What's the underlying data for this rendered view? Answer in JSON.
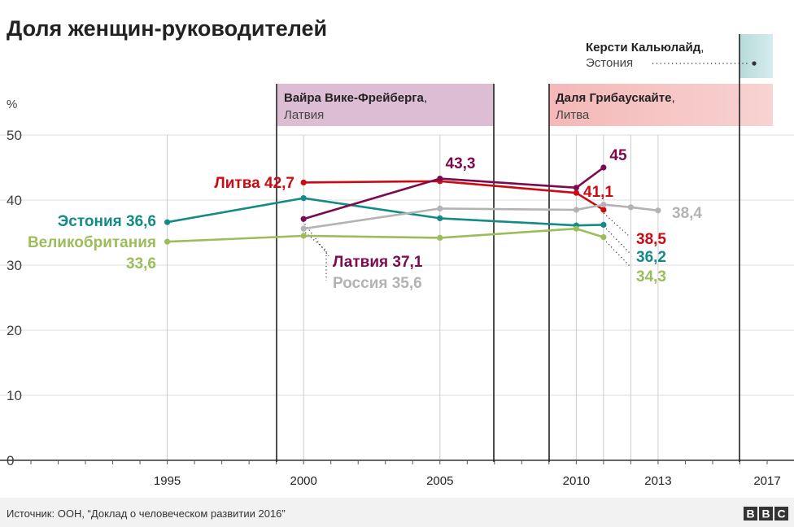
{
  "chart_data": {
    "type": "line",
    "title": "Доля женщин-руководителей",
    "unit_label": "%",
    "ylim": [
      0,
      50
    ],
    "y_ticks": [
      "0",
      "10",
      "20",
      "30",
      "40",
      "50"
    ],
    "x_range": [
      1990,
      2017
    ],
    "x_ticks": [
      {
        "value": 1995,
        "label": "1995"
      },
      {
        "value": 2000,
        "label": "2000"
      },
      {
        "value": 2005,
        "label": "2005"
      },
      {
        "value": 2010,
        "label": "2010"
      },
      {
        "value": 2013,
        "label": "2013"
      },
      {
        "value": 2017,
        "label": "2017"
      }
    ],
    "grid": true,
    "series": [
      {
        "name": "Эстония",
        "color": "#138b86",
        "points": [
          [
            1995,
            36.6
          ],
          [
            2000,
            40.3
          ],
          [
            2005,
            37.2
          ],
          [
            2010,
            36.1
          ],
          [
            2011,
            36.2
          ]
        ]
      },
      {
        "name": "Великобритания",
        "color": "#9cbd5a",
        "points": [
          [
            1995,
            33.6
          ],
          [
            2000,
            34.5
          ],
          [
            2005,
            34.2
          ],
          [
            2010,
            35.6
          ],
          [
            2011,
            34.3
          ]
        ]
      },
      {
        "name": "Литва",
        "color": "#cc0a11",
        "points": [
          [
            2000,
            42.7
          ],
          [
            2005,
            42.9
          ],
          [
            2010,
            41.1
          ],
          [
            2011,
            38.5
          ]
        ]
      },
      {
        "name": "Латвия",
        "color": "#7d0a4d",
        "points": [
          [
            2000,
            37.1
          ],
          [
            2005,
            43.3
          ],
          [
            2010,
            41.9
          ],
          [
            2011,
            45.0
          ]
        ]
      },
      {
        "name": "Россия",
        "color": "#b3b3b3",
        "points": [
          [
            2000,
            35.6
          ],
          [
            2005,
            38.7
          ],
          [
            2010,
            38.5
          ],
          [
            2011,
            39.3
          ],
          [
            2012,
            38.9
          ],
          [
            2013,
            38.4
          ]
        ]
      }
    ],
    "labels": {
      "estonia_start": "Эстония 36,6",
      "uk_start_name": "Великобритания",
      "uk_start_value": "33,6",
      "lithuania_start": "Литва 42,7",
      "latvia_peak": "43,3",
      "latvia_end": "45",
      "latvia_start": "Латвия 37,1",
      "russia_start": "Россия 35,6",
      "lithuania_2010": "41,1",
      "russia_end": "38,4",
      "lithuania_end": "38,5",
      "estonia_end": "36,2",
      "uk_end": "34,3"
    },
    "presidencies": [
      {
        "name": "Вайра Вике-Фрейберга",
        "country": "Латвия",
        "from": 1999,
        "to": 2007,
        "color": "#dcbdd3"
      },
      {
        "name": "Даля Грибаускайте",
        "country": "Литва",
        "from": 2009,
        "to": 2017,
        "color": "#f2c2c1"
      },
      {
        "name": "Керсти Кальюлайд",
        "country": "Эстония",
        "from": 2016,
        "to": 2017,
        "color": "#bfe0df"
      }
    ]
  },
  "footer": {
    "source": "Источник: ООН, “Доклад о человеческом развитии 2016”",
    "logo": "BBC"
  }
}
